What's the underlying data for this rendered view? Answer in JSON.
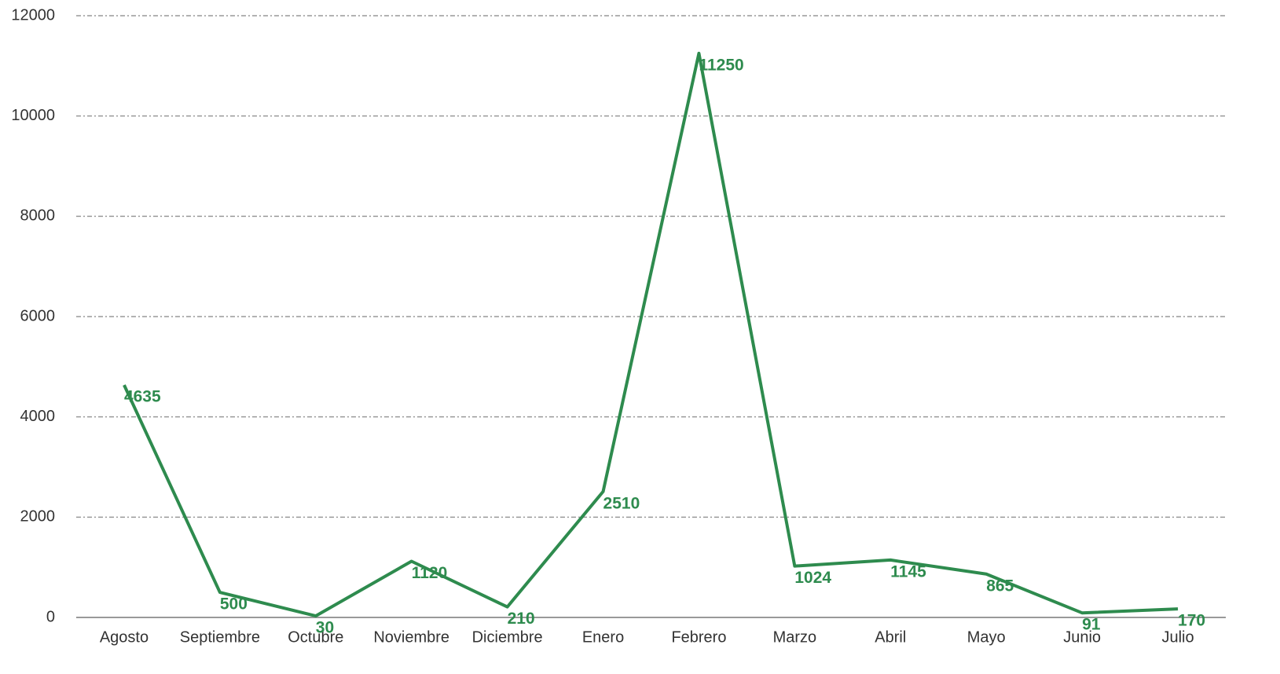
{
  "chart_data": {
    "type": "line",
    "categories": [
      "Agosto",
      "Septiembre",
      "Octubre",
      "Noviembre",
      "Diciembre",
      "Enero",
      "Febrero",
      "Marzo",
      "Abril",
      "Mayo",
      "Junio",
      "Julio"
    ],
    "series": [
      {
        "color": "#2e8b4e",
        "values": [
          4635,
          500,
          30,
          1120,
          210,
          2510,
          11250,
          1024,
          1145,
          865,
          91,
          170
        ]
      }
    ],
    "ylim": [
      0,
      12000
    ],
    "yticks": [
      0,
      2000,
      4000,
      6000,
      8000,
      10000,
      12000
    ],
    "grid": true
  }
}
